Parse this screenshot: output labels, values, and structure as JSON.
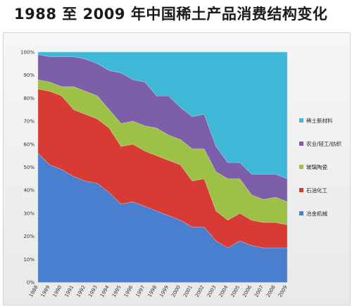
{
  "title": "1988 至 2009 年中国稀土产品消费结构变化",
  "chart_data": {
    "type": "area",
    "stacked": true,
    "normalized_percent": true,
    "title": "1988 至 2009 年中国稀土产品消费结构变化",
    "xlabel": "",
    "ylabel": "",
    "ylim": [
      0,
      100
    ],
    "y_ticks": [
      "0%",
      "10%",
      "20%",
      "30%",
      "40%",
      "50%",
      "60%",
      "70%",
      "80%",
      "90%",
      "100%"
    ],
    "x": [
      "1988",
      "1989",
      "1990",
      "1991",
      "1992",
      "1993",
      "1994",
      "1995",
      "1996",
      "1997",
      "1998",
      "1999",
      "2000",
      "2001",
      "2002",
      "2003",
      "2004",
      "2005",
      "2006",
      "2007",
      "2008",
      "2009"
    ],
    "legend_position": "right",
    "series": [
      {
        "name": "冶金机械",
        "color": "#4a7fd0",
        "values": [
          56,
          51,
          49,
          46,
          44,
          43,
          39,
          34,
          35,
          33,
          31,
          29,
          27,
          24,
          24,
          18,
          15,
          18,
          16,
          15,
          15,
          15
        ]
      },
      {
        "name": "石油化工",
        "color": "#d83b33",
        "values": [
          28,
          32,
          32,
          29,
          29,
          28,
          28,
          25,
          25,
          24,
          24,
          24,
          24,
          20,
          21,
          13,
          12,
          12,
          11,
          11,
          11,
          10
        ]
      },
      {
        "name": "玻璃陶瓷",
        "color": "#9dc046",
        "values": [
          4,
          4,
          4,
          10,
          10,
          10,
          8,
          10,
          10,
          11,
          12,
          11,
          11,
          14,
          13,
          17,
          18,
          15,
          11,
          10,
          11,
          10
        ]
      },
      {
        "name": "农业/轻工/纺织",
        "color": "#7d5ea8",
        "values": [
          11,
          11,
          13,
          13,
          14,
          14,
          17,
          22,
          18,
          19,
          14,
          17,
          14,
          14,
          15,
          11,
          7,
          7,
          9,
          11,
          10,
          10
        ]
      },
      {
        "name": "稀土新材料",
        "color": "#3fb7d6",
        "values": [
          1,
          2,
          2,
          2,
          3,
          5,
          8,
          9,
          12,
          13,
          19,
          19,
          24,
          28,
          27,
          41,
          48,
          48,
          53,
          53,
          53,
          55
        ]
      }
    ]
  }
}
